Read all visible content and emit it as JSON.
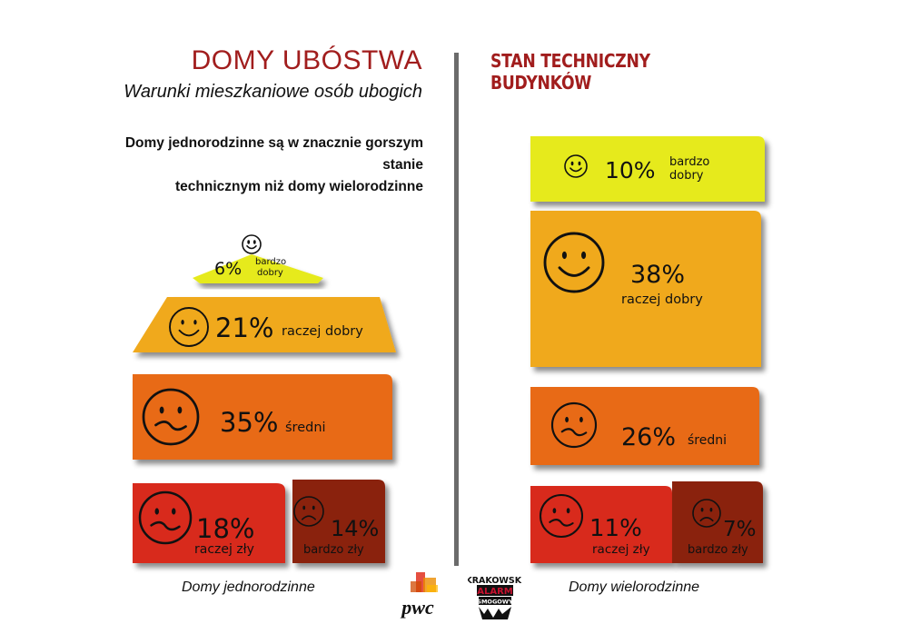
{
  "header": {
    "title": "DOMY UBÓSTWA",
    "subtitle": "Warunki mieszkaniowe osób ubogich",
    "description_line1": "Domy jednorodzinne są w znacznie gorszym stanie",
    "description_line2": "technicznym niż domy wielorodzinne",
    "right_title": "STAN TECHNICZNY BUDYNKÓW"
  },
  "footer": {
    "left_caption": "Domy jednorodzinne",
    "right_caption": "Domy wielorodzinne"
  },
  "logos": {
    "pwc": "pwc",
    "kas_line1": "KRAKOWSKI",
    "kas_line2": "ALARM",
    "kas_line3": "SMOGOWY"
  },
  "colors": {
    "bardzo_dobry": "#e6ea1a",
    "raczej_dobry": "#f0a91e",
    "sredni": "#e86a14",
    "raczej_zly": "#d8291a",
    "bardzo_zly": "#8a2210",
    "accent": "#a11d1d"
  },
  "chart_data": [
    {
      "type": "bar",
      "title": "",
      "series_name": "Domy jednorodzinne",
      "categories": [
        {
          "key": "bardzo_dobry",
          "pct_text": "6%",
          "label_line1": "bardzo",
          "label_line2": "dobry",
          "value": 6,
          "face": "smile"
        },
        {
          "key": "raczej_dobry",
          "pct_text": "21%",
          "label_line1": "raczej dobry",
          "label_line2": "",
          "value": 21,
          "face": "smile"
        },
        {
          "key": "sredni",
          "pct_text": "35%",
          "label_line1": "średni",
          "label_line2": "",
          "value": 35,
          "face": "wavy"
        },
        {
          "key": "raczej_zly",
          "pct_text": "18%",
          "label_line1": "raczej zły",
          "label_line2": "",
          "value": 18,
          "face": "wavy"
        },
        {
          "key": "bardzo_zly",
          "pct_text": "14%",
          "label_line1": "bardzo zły",
          "label_line2": "",
          "value": 14,
          "face": "sad"
        }
      ]
    },
    {
      "type": "bar",
      "title": "",
      "series_name": "Domy wielorodzinne",
      "categories": [
        {
          "key": "bardzo_dobry",
          "pct_text": "10%",
          "label_line1": "bardzo",
          "label_line2": "dobry",
          "value": 10,
          "face": "smile"
        },
        {
          "key": "raczej_dobry",
          "pct_text": "38%",
          "label_line1": "raczej dobry",
          "label_line2": "",
          "value": 38,
          "face": "smile"
        },
        {
          "key": "sredni",
          "pct_text": "26%",
          "label_line1": "średni",
          "label_line2": "",
          "value": 26,
          "face": "wavy"
        },
        {
          "key": "raczej_zly",
          "pct_text": "11%",
          "label_line1": "raczej zły",
          "label_line2": "",
          "value": 11,
          "face": "wavy"
        },
        {
          "key": "bardzo_zly",
          "pct_text": "7%",
          "label_line1": "bardzo zły",
          "label_line2": "",
          "value": 7,
          "face": "sad"
        }
      ]
    }
  ]
}
